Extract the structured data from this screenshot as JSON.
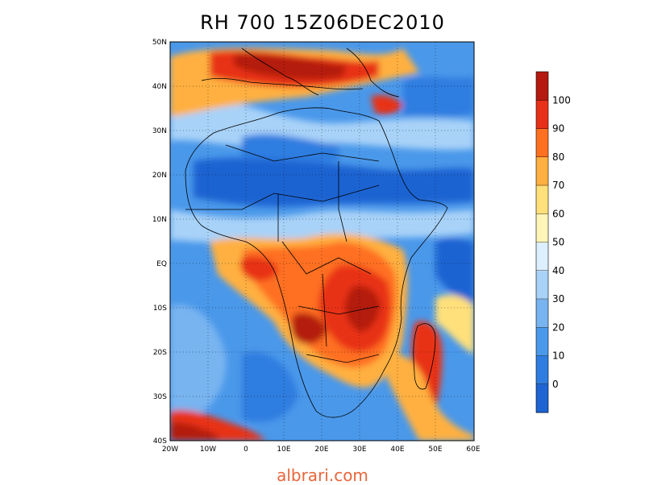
{
  "title": "RH 700  15Z06DEC2010",
  "watermark": "albrari.com",
  "latitude_labels": [
    "50N",
    "40N",
    "30N",
    "20N",
    "10N",
    "EQ",
    "10S",
    "20S",
    "30S",
    "40S"
  ],
  "longitude_labels": [
    "20W",
    "10W",
    "0",
    "10E",
    "20E",
    "30E",
    "40E",
    "50E",
    "60E"
  ],
  "colorbar": {
    "labels": [
      "0",
      "10",
      "20",
      "30",
      "40",
      "50",
      "60",
      "70",
      "80",
      "90",
      "100"
    ],
    "colors": [
      "#1e64d2",
      "#2f7de0",
      "#4a98ea",
      "#78b4f0",
      "#a8d2f8",
      "#ddf0ff",
      "#fff5b8",
      "#ffe07a",
      "#ffb040",
      "#ff7020",
      "#e83018",
      "#b41a10"
    ]
  },
  "map": {
    "projection": "lat-lon",
    "lon_range": [
      -20,
      60
    ],
    "lat_range": [
      -40,
      50
    ],
    "field": "relative humidity at 700 hPa"
  }
}
